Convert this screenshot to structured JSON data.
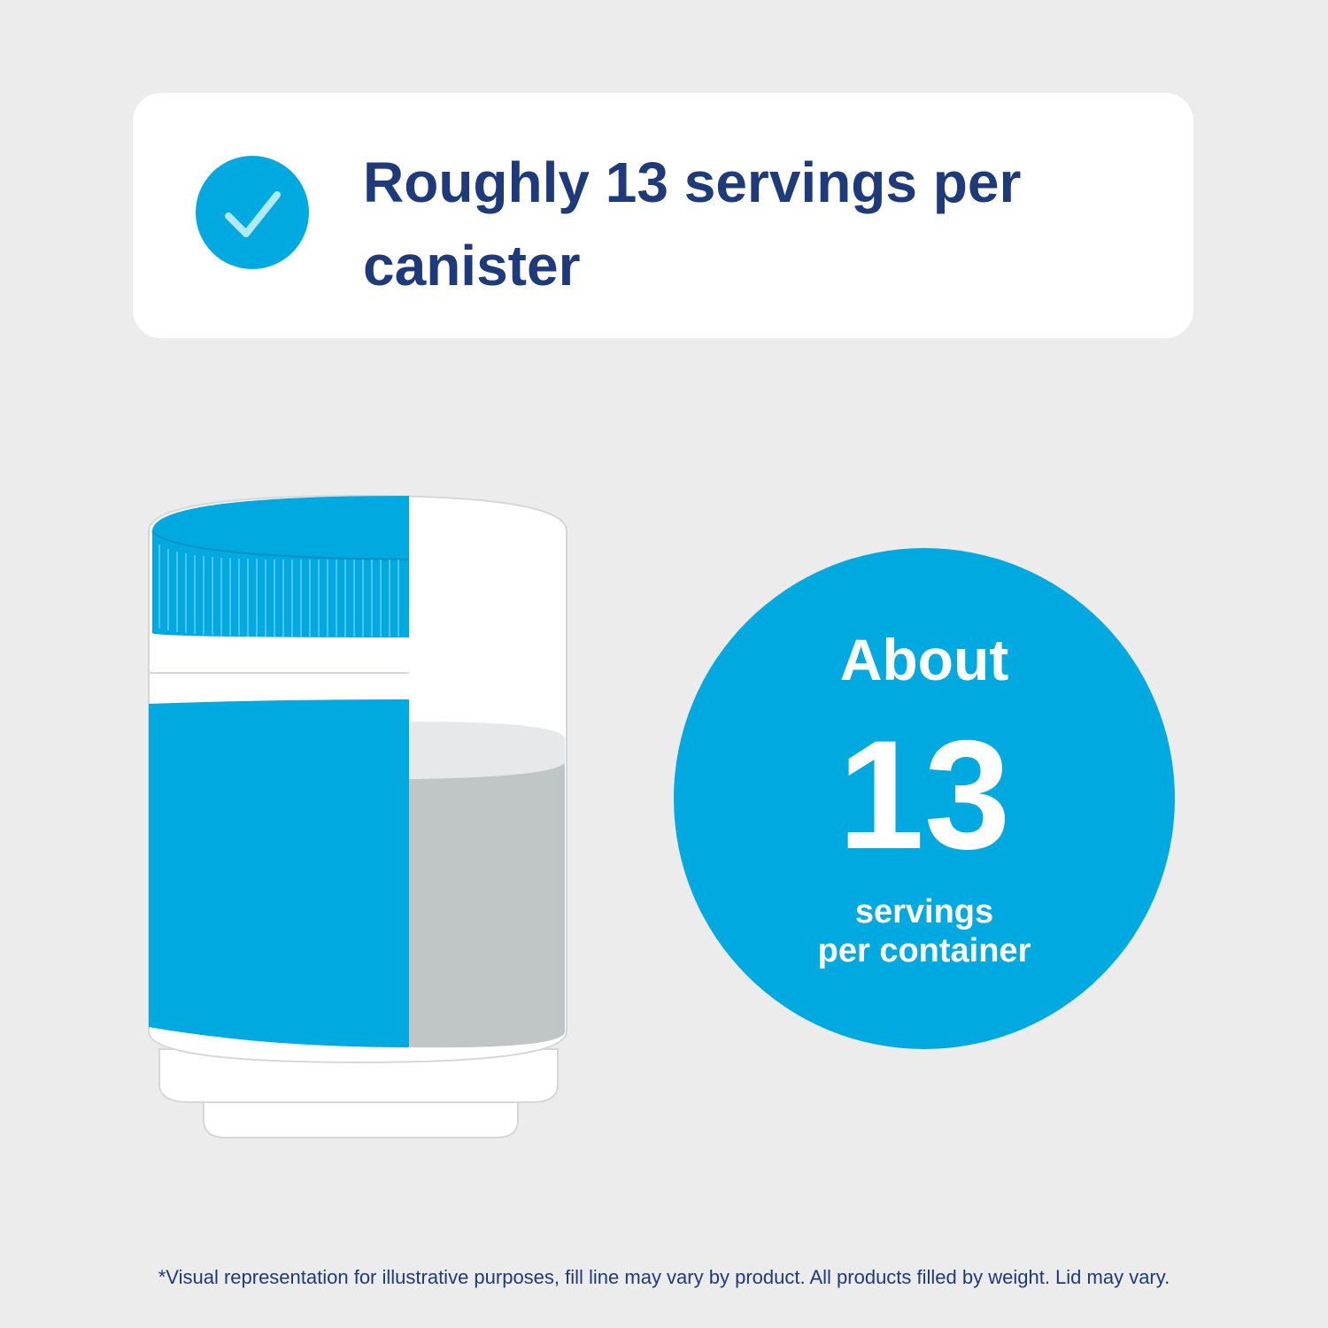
{
  "header": {
    "title_lines": [
      "Roughly 13 servings per",
      "canister"
    ]
  },
  "badge": {
    "lead": "About",
    "number": "13",
    "caption_lines": [
      "servings",
      "per container"
    ]
  },
  "footnote": "*Visual representation for illustrative purposes, fill line may vary by product. All products filled by weight. Lid may vary."
}
